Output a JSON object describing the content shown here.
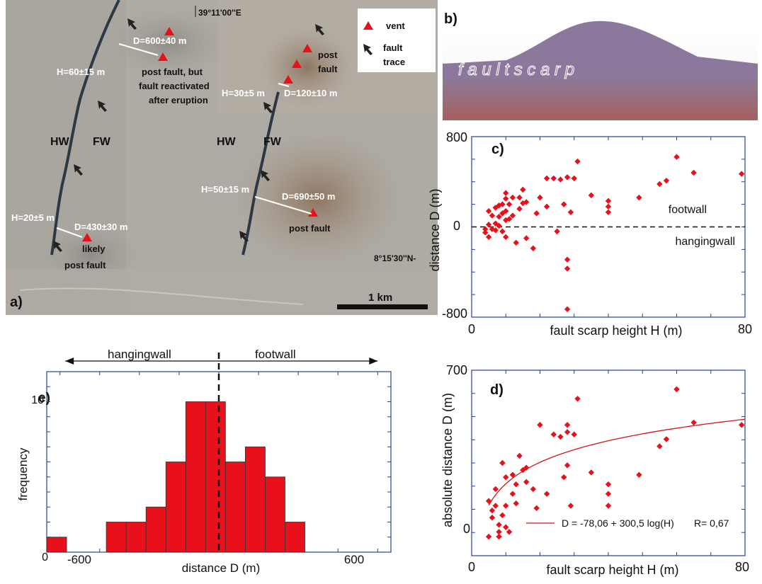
{
  "panel_a": {
    "panel_label": "a)",
    "top_coord": "39°11'00''E",
    "side_coord": "8°15'30''N-",
    "scale_label": "1 km",
    "legend": {
      "vent": "vent",
      "fault_trace_1": "fault",
      "fault_trace_2": "trace"
    },
    "zone_labels": [
      "HW",
      "FW",
      "HW",
      "FW"
    ],
    "annotations": {
      "d1": "D=600±40 m",
      "h1": "H=60±15 m",
      "note1_1": "post fault, but",
      "note1_2": "fault reactivated",
      "note1_3": "after eruption",
      "post_fault_top_1": "post",
      "post_fault_top_2": "fault",
      "h2": "H=30±5 m",
      "d2": "D=120±10 m",
      "h3": "H=50±15 m",
      "d3": "D=690±50 m",
      "post_fault_right": "post fault",
      "h4": "H=20±5 m",
      "d4": "D=430±30 m",
      "likely_1": "likely",
      "likely_2": "post fault"
    }
  },
  "panel_b": {
    "panel_label": "b)",
    "caption": "f a u l t     s c a r p"
  },
  "chart_data": [
    {
      "id": "c",
      "type": "scatter",
      "panel_label": "c)",
      "xlabel": "fault scarp height H (m)",
      "ylabel": "distance D (m)",
      "xlim": [
        0,
        80
      ],
      "ylim": [
        -800,
        800
      ],
      "x_tick_labels": [
        {
          "v": 0,
          "t": "0"
        },
        {
          "v": 80,
          "t": "80"
        }
      ],
      "y_tick_labels": [
        {
          "v": 800,
          "t": "800"
        },
        {
          "v": 0,
          "t": "0"
        },
        {
          "v": -800,
          "t": "-800"
        }
      ],
      "zero_line_labels": {
        "above": "footwall",
        "below": "hangingwall"
      },
      "color": "#e8101a",
      "points": [
        [
          4,
          -20
        ],
        [
          4,
          -50
        ],
        [
          5,
          20
        ],
        [
          5,
          140
        ],
        [
          5,
          -90
        ],
        [
          6,
          100
        ],
        [
          6,
          -20
        ],
        [
          7,
          30
        ],
        [
          7,
          170
        ],
        [
          7,
          -30
        ],
        [
          8,
          90
        ],
        [
          8,
          190
        ],
        [
          8,
          10
        ],
        [
          9,
          120
        ],
        [
          9,
          200
        ],
        [
          9,
          -40
        ],
        [
          10,
          60
        ],
        [
          10,
          250
        ],
        [
          10,
          300
        ],
        [
          10,
          140
        ],
        [
          10,
          -90
        ],
        [
          11,
          70
        ],
        [
          11,
          200
        ],
        [
          12,
          260
        ],
        [
          12,
          100
        ],
        [
          13,
          -140
        ],
        [
          14,
          160
        ],
        [
          14,
          260
        ],
        [
          15,
          210
        ],
        [
          15,
          330
        ],
        [
          16,
          220
        ],
        [
          16,
          -100
        ],
        [
          18,
          -190
        ],
        [
          19,
          120
        ],
        [
          20,
          260
        ],
        [
          22,
          430
        ],
        [
          22,
          180
        ],
        [
          24,
          430
        ],
        [
          25,
          -40
        ],
        [
          26,
          420
        ],
        [
          27,
          200
        ],
        [
          28,
          440
        ],
        [
          28,
          -290
        ],
        [
          28,
          -370
        ],
        [
          28,
          -730
        ],
        [
          29,
          130
        ],
        [
          30,
          430
        ],
        [
          31,
          580
        ],
        [
          35,
          280
        ],
        [
          40,
          230
        ],
        [
          40,
          180
        ],
        [
          40,
          130
        ],
        [
          49,
          260
        ],
        [
          55,
          380
        ],
        [
          57,
          410
        ],
        [
          60,
          620
        ],
        [
          65,
          480
        ],
        [
          79,
          470
        ]
      ]
    },
    {
      "id": "d",
      "type": "scatter",
      "panel_label": "d)",
      "xlabel": "fault scarp height H (m)",
      "ylabel": "absolute distance D (m)",
      "xlim": [
        0,
        80
      ],
      "ylim": [
        -80,
        700
      ],
      "x_tick_labels": [
        {
          "v": 0,
          "t": "0"
        },
        {
          "v": 80,
          "t": "80"
        }
      ],
      "y_tick_labels": [
        {
          "v": 700,
          "t": "700"
        },
        {
          "v": 0,
          "t": "0"
        }
      ],
      "fit_label": "D = -78,06 + 300,5 log(H)",
      "r_label": "R= 0,67",
      "fit": {
        "a": -78.06,
        "b": 300.5,
        "x_from": 5,
        "x_to": 80
      },
      "color": "#e8101a",
      "points": [
        [
          5,
          0
        ],
        [
          5,
          150
        ],
        [
          6,
          110
        ],
        [
          6,
          80
        ],
        [
          7,
          130
        ],
        [
          7,
          200
        ],
        [
          8,
          50
        ],
        [
          8,
          20
        ],
        [
          8,
          0
        ],
        [
          9,
          90
        ],
        [
          9,
          310
        ],
        [
          10,
          40
        ],
        [
          10,
          130
        ],
        [
          10,
          250
        ],
        [
          11,
          20
        ],
        [
          12,
          180
        ],
        [
          12,
          260
        ],
        [
          13,
          140
        ],
        [
          13,
          220
        ],
        [
          14,
          340
        ],
        [
          15,
          280
        ],
        [
          16,
          290
        ],
        [
          16,
          230
        ],
        [
          18,
          200
        ],
        [
          19,
          120
        ],
        [
          20,
          470
        ],
        [
          22,
          180
        ],
        [
          24,
          430
        ],
        [
          26,
          420
        ],
        [
          27,
          250
        ],
        [
          28,
          300
        ],
        [
          28,
          470
        ],
        [
          28,
          440
        ],
        [
          29,
          130
        ],
        [
          30,
          430
        ],
        [
          31,
          580
        ],
        [
          35,
          270
        ],
        [
          40,
          220
        ],
        [
          40,
          180
        ],
        [
          40,
          130
        ],
        [
          49,
          260
        ],
        [
          55,
          380
        ],
        [
          57,
          410
        ],
        [
          60,
          620
        ],
        [
          65,
          480
        ],
        [
          79,
          470
        ]
      ]
    },
    {
      "id": "e",
      "type": "bar",
      "panel_label": "e)",
      "xlabel": "distance D (m)",
      "ylabel": "frequency",
      "xlim": [
        -650,
        650
      ],
      "ylim": [
        0,
        12
      ],
      "x_tick_labels": [
        {
          "v": -600,
          "t": "-600"
        },
        {
          "v": 600,
          "t": "600"
        }
      ],
      "y_tick_labels": [
        {
          "v": 10,
          "t": "10"
        },
        {
          "v": 0,
          "t": "0"
        }
      ],
      "arrow_labels": {
        "left": "hangingwall",
        "right": "footwall"
      },
      "bin_width": 75,
      "bins": [
        {
          "x0": -650,
          "count": 1
        },
        {
          "x0": -425,
          "count": 2
        },
        {
          "x0": -350,
          "count": 2
        },
        {
          "x0": -275,
          "count": 3
        },
        {
          "x0": -200,
          "count": 6
        },
        {
          "x0": -125,
          "count": 10
        },
        {
          "x0": -50,
          "count": 10
        },
        {
          "x0": 25,
          "count": 6
        },
        {
          "x0": 100,
          "count": 7
        },
        {
          "x0": 175,
          "count": 5
        },
        {
          "x0": 250,
          "count": 2
        }
      ],
      "color": "#e8101a"
    }
  ]
}
